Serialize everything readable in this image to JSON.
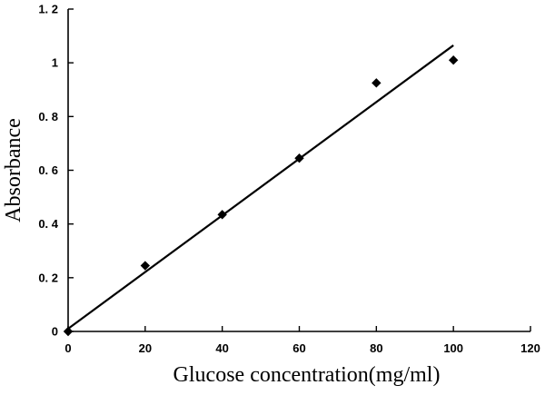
{
  "chart_data": {
    "type": "scatter",
    "xlabel": "Glucose concentration(mg/ml)",
    "ylabel": "Absorbance",
    "xlim": [
      0,
      120
    ],
    "ylim": [
      0,
      1.2
    ],
    "xticks": [
      0,
      20,
      40,
      60,
      80,
      100,
      120
    ],
    "yticks": [
      0,
      0.2,
      0.4,
      0.6,
      0.8,
      1,
      1.2
    ],
    "xtick_labels": [
      "0",
      "20",
      "40",
      "60",
      "80",
      "100",
      "120"
    ],
    "ytick_labels": [
      "0",
      "0. 2",
      "0. 4",
      "0. 6",
      "0. 8",
      "1",
      "1. 2"
    ],
    "grid": false,
    "series": [
      {
        "marker": "diamond",
        "color": "#000000",
        "x": [
          0,
          20,
          40,
          60,
          80,
          100
        ],
        "y": [
          0.0,
          0.245,
          0.435,
          0.645,
          0.925,
          1.01
        ]
      }
    ],
    "fit_line": {
      "x": [
        0,
        100
      ],
      "y": [
        0.01,
        1.065
      ],
      "color": "#000000"
    }
  }
}
